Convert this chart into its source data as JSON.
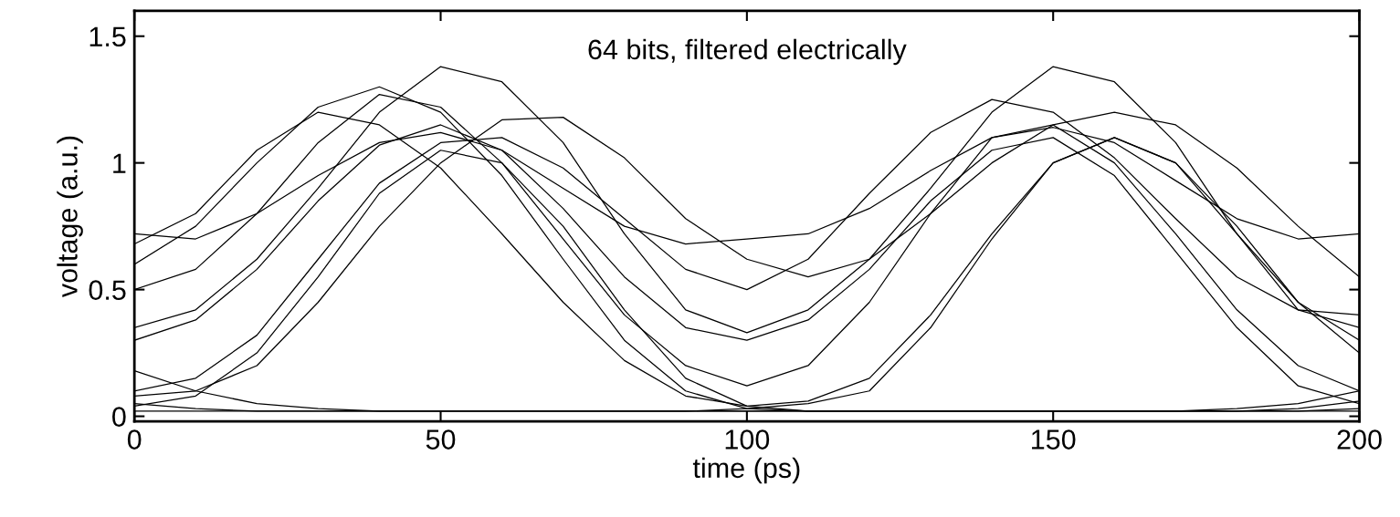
{
  "chart_data": {
    "type": "line",
    "title": "64 bits, filtered electrically",
    "xlabel": "time (ps)",
    "ylabel": "voltage (a.u.)",
    "x": [
      0,
      10,
      20,
      30,
      40,
      50,
      60,
      70,
      80,
      90,
      100,
      110,
      120,
      130,
      140,
      150,
      160,
      170,
      180,
      190,
      200
    ],
    "xlim": [
      0,
      200
    ],
    "xticks": [
      0,
      50,
      100,
      150,
      200
    ],
    "ylim": [
      -0.02,
      1.6
    ],
    "yticks": [
      0,
      0.5,
      1,
      1.5
    ],
    "grid": false,
    "legend": false,
    "marker": "none",
    "line_style": "solid",
    "series": [
      {
        "color": "#000000",
        "values": [
          0.35,
          0.42,
          0.62,
          0.9,
          1.2,
          1.38,
          1.32,
          1.08,
          0.72,
          0.42,
          0.33,
          0.42,
          0.62,
          0.9,
          1.2,
          1.38,
          1.32,
          1.08,
          0.72,
          0.42,
          0.35
        ]
      },
      {
        "color": "#000000",
        "values": [
          0.08,
          0.1,
          0.2,
          0.45,
          0.75,
          1.0,
          1.17,
          1.18,
          1.02,
          0.78,
          0.62,
          0.55,
          0.62,
          0.8,
          1.0,
          1.15,
          1.2,
          1.15,
          0.98,
          0.75,
          0.55
        ]
      },
      {
        "color": "#000000",
        "values": [
          0.68,
          0.8,
          1.05,
          1.2,
          1.15,
          0.98,
          0.72,
          0.45,
          0.22,
          0.08,
          0.04,
          0.06,
          0.15,
          0.4,
          0.72,
          1.0,
          1.1,
          1.0,
          0.75,
          0.45,
          0.25
        ]
      },
      {
        "color": "#000000",
        "values": [
          0.05,
          0.03,
          0.02,
          0.02,
          0.02,
          0.02,
          0.02,
          0.02,
          0.02,
          0.02,
          0.02,
          0.02,
          0.02,
          0.02,
          0.02,
          0.02,
          0.02,
          0.02,
          0.02,
          0.03,
          0.06
        ]
      },
      {
        "color": "#000000",
        "values": [
          0.04,
          0.08,
          0.25,
          0.55,
          0.88,
          1.05,
          1.0,
          0.75,
          0.42,
          0.15,
          0.04,
          0.02,
          0.02,
          0.02,
          0.02,
          0.02,
          0.02,
          0.02,
          0.02,
          0.02,
          0.03
        ]
      },
      {
        "color": "#000000",
        "values": [
          0.72,
          0.7,
          0.8,
          0.95,
          1.08,
          1.12,
          1.05,
          0.9,
          0.75,
          0.68,
          0.7,
          0.72,
          0.82,
          0.97,
          1.1,
          1.14,
          1.08,
          0.93,
          0.78,
          0.7,
          0.72
        ]
      },
      {
        "color": "#000000",
        "values": [
          0.6,
          0.75,
          1.0,
          1.22,
          1.3,
          1.2,
          0.95,
          0.62,
          0.3,
          0.1,
          0.03,
          0.02,
          0.02,
          0.02,
          0.02,
          0.02,
          0.02,
          0.02,
          0.03,
          0.05,
          0.1
        ]
      },
      {
        "color": "#000000",
        "values": [
          0.3,
          0.38,
          0.58,
          0.85,
          1.07,
          1.15,
          1.05,
          0.82,
          0.55,
          0.35,
          0.3,
          0.38,
          0.58,
          0.85,
          1.05,
          1.1,
          0.95,
          0.65,
          0.35,
          0.12,
          0.05
        ]
      },
      {
        "color": "#000000",
        "values": [
          0.02,
          0.02,
          0.02,
          0.02,
          0.02,
          0.02,
          0.02,
          0.02,
          0.02,
          0.02,
          0.03,
          0.05,
          0.1,
          0.35,
          0.7,
          1.0,
          1.1,
          1.0,
          0.72,
          0.45,
          0.3
        ]
      },
      {
        "color": "#000000",
        "values": [
          0.5,
          0.58,
          0.8,
          1.08,
          1.27,
          1.22,
          1.0,
          0.7,
          0.4,
          0.2,
          0.12,
          0.2,
          0.45,
          0.8,
          1.1,
          1.15,
          1.0,
          0.72,
          0.42,
          0.2,
          0.1
        ]
      },
      {
        "color": "#000000",
        "values": [
          0.18,
          0.1,
          0.05,
          0.03,
          0.02,
          0.02,
          0.02,
          0.02,
          0.02,
          0.02,
          0.02,
          0.02,
          0.02,
          0.02,
          0.02,
          0.02,
          0.02,
          0.02,
          0.02,
          0.02,
          0.02
        ]
      },
      {
        "color": "#000000",
        "values": [
          0.1,
          0.15,
          0.32,
          0.62,
          0.92,
          1.08,
          1.1,
          0.98,
          0.78,
          0.58,
          0.5,
          0.62,
          0.88,
          1.12,
          1.25,
          1.2,
          1.02,
          0.78,
          0.55,
          0.42,
          0.4
        ]
      }
    ]
  }
}
